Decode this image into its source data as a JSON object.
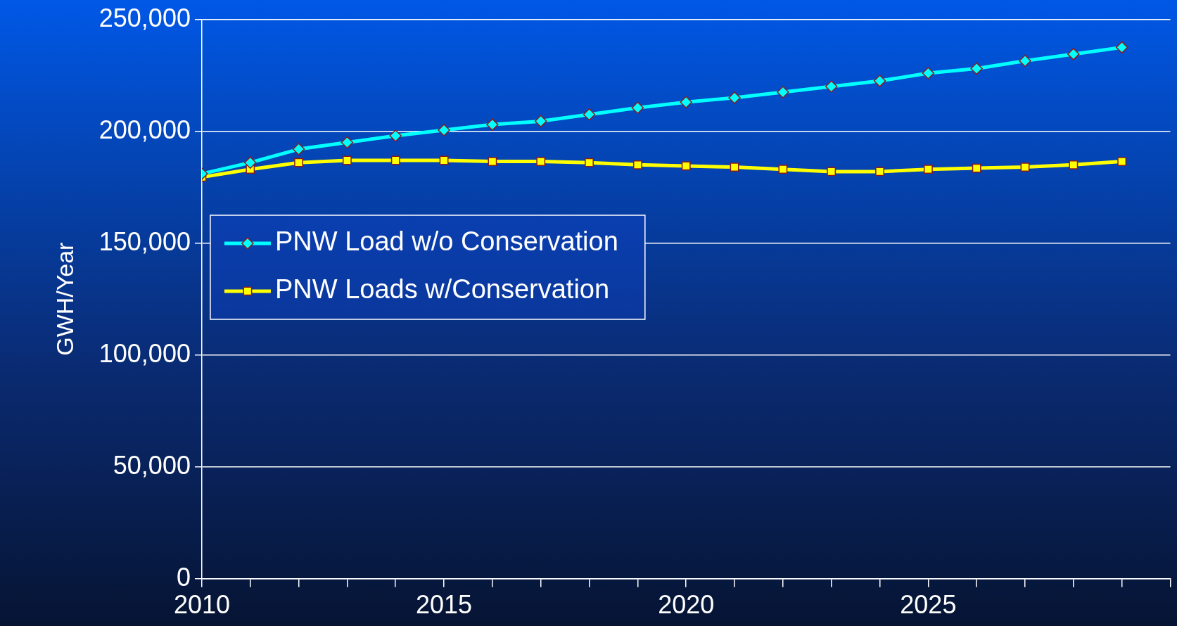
{
  "chart_data": {
    "type": "line",
    "ylabel": "GWH/Year",
    "xlim": [
      2010,
      2030
    ],
    "ylim": [
      0,
      250000
    ],
    "xticks": [
      2010,
      {
        "value": 2011,
        "label": null
      },
      {
        "value": 2012,
        "label": null
      },
      {
        "value": 2013,
        "label": null
      },
      {
        "value": 2014,
        "label": null
      },
      2015,
      {
        "value": 2016,
        "label": null
      },
      {
        "value": 2017,
        "label": null
      },
      {
        "value": 2018,
        "label": null
      },
      {
        "value": 2019,
        "label": null
      },
      2020,
      {
        "value": 2021,
        "label": null
      },
      {
        "value": 2022,
        "label": null
      },
      {
        "value": 2023,
        "label": null
      },
      {
        "value": 2024,
        "label": null
      },
      2025,
      {
        "value": 2026,
        "label": null
      },
      {
        "value": 2027,
        "label": null
      },
      {
        "value": 2028,
        "label": null
      },
      {
        "value": 2029,
        "label": null
      },
      {
        "value": 2030,
        "label": null
      }
    ],
    "yticks": [
      0,
      {
        "value": 50000,
        "label": "50,000"
      },
      {
        "value": 100000,
        "label": "100,000"
      },
      {
        "value": 150000,
        "label": "150,000"
      },
      {
        "value": 200000,
        "label": "200,000"
      },
      {
        "value": 250000,
        "label": "250,000"
      }
    ],
    "x": [
      2010,
      2011,
      2012,
      2013,
      2014,
      2015,
      2016,
      2017,
      2018,
      2019,
      2020,
      2021,
      2022,
      2023,
      2024,
      2025,
      2026,
      2027,
      2028,
      2029
    ],
    "grid": "y",
    "legend": "left",
    "line_style": "solid",
    "series": [
      {
        "name": "PNW Load w/o Conservation",
        "color": "#00ffff",
        "marker": "diamond",
        "values": [
          181000,
          186000,
          192000,
          195000,
          198000,
          200500,
          203000,
          204500,
          207500,
          210500,
          213000,
          215000,
          217500,
          220000,
          222500,
          226000,
          228000,
          231500,
          234500,
          237500
        ]
      },
      {
        "name": "PNW Loads w/Conservation",
        "color": "#ffff00",
        "marker": "square",
        "values": [
          179500,
          183000,
          186000,
          187000,
          187000,
          187000,
          186500,
          186500,
          186000,
          185000,
          184500,
          184000,
          183000,
          182000,
          182000,
          183000,
          183500,
          184000,
          185000,
          186500
        ]
      }
    ]
  }
}
